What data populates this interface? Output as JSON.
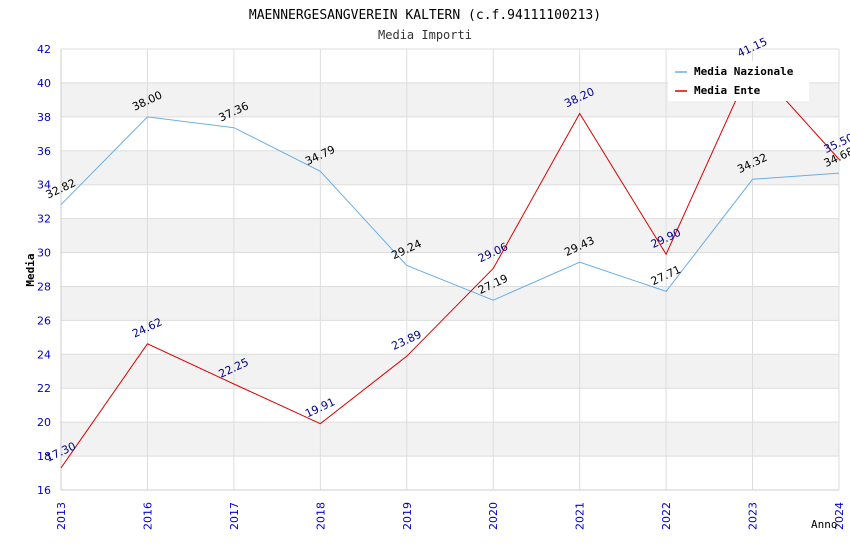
{
  "chart_data": {
    "type": "line",
    "title": "MAENNERGESANGVEREIN KALTERN (c.f.94111100213)",
    "subtitle": "Media Importi",
    "xlabel": "Anno",
    "ylabel": "Media",
    "categories": [
      "2013",
      "2016",
      "2017",
      "2018",
      "2019",
      "2020",
      "2021",
      "2022",
      "2023",
      "2024"
    ],
    "ylim": [
      16,
      42
    ],
    "yticks": [
      16,
      18,
      20,
      22,
      24,
      26,
      28,
      30,
      32,
      34,
      36,
      38,
      40,
      42
    ],
    "grid": true,
    "legend_position": "top-right",
    "series": [
      {
        "name": "Media Nazionale",
        "color": "#6aaee6",
        "label_color": "#000000",
        "values": [
          32.82,
          38.0,
          37.36,
          34.79,
          29.24,
          27.19,
          29.43,
          27.71,
          34.32,
          34.68
        ],
        "labels": [
          "32.82",
          "38.00",
          "37.36",
          "34.79",
          "29.24",
          "27.19",
          "29.43",
          "27.71",
          "34.32",
          "34.68"
        ]
      },
      {
        "name": "Media Ente",
        "color": "#dd0000",
        "label_color": "#00008b",
        "values": [
          17.3,
          24.62,
          22.25,
          19.91,
          23.89,
          29.06,
          38.2,
          29.9,
          41.15,
          35.5
        ],
        "labels": [
          "17.30",
          "24.62",
          "22.25",
          "19.91",
          "23.89",
          "29.06",
          "38.20",
          "29.90",
          "41.15",
          "35.50"
        ]
      }
    ]
  }
}
